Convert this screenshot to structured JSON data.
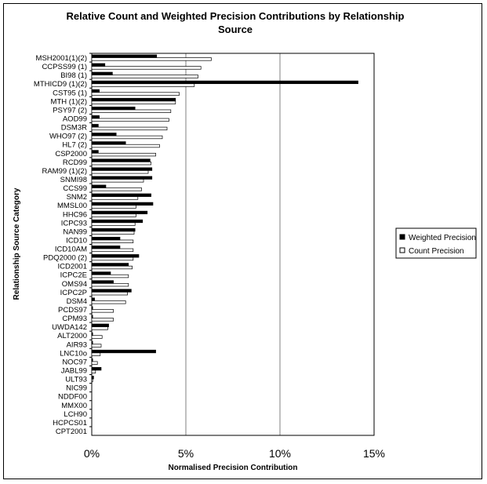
{
  "chart_data": {
    "type": "bar",
    "orientation": "horizontal",
    "title_line1": "Relative Count and Weighted Precision Contributions by Relationship",
    "title_line2": "Source",
    "xlabel": "Normalised Precision Contribution",
    "ylabel": "Relationship Source Category",
    "xlim": [
      0,
      15
    ],
    "xticks": [
      0,
      5,
      10,
      15
    ],
    "xtick_labels": [
      "0%",
      "5%",
      "10%",
      "15%"
    ],
    "grid": "vertical",
    "legend_position": "right",
    "categories": [
      "MSH2001(1)(2)",
      "CCPSS99 (1)",
      "BI98 (1)",
      "MTHICD9 (1)(2)",
      "CST95 (1)",
      "MTH (1)(2)",
      "PSY97 (2)",
      "AOD99",
      "DSM3R",
      "WHO97 (2)",
      "HL7 (2)",
      "CSP2000",
      "RCD99",
      "RAM99 (1)(2)",
      "SNMI98",
      "CCS99",
      "SNM2",
      "MMSL00",
      "HHC96",
      "ICPC93",
      "NAN99",
      "ICD10",
      "ICD10AM",
      "PDQ2000 (2)",
      "ICD2001",
      "ICPC2E",
      "OMS94",
      "ICPC2P",
      "DSM4",
      "PCDS97",
      "CPM93",
      "UWDA142",
      "ALT2000",
      "AIR93",
      "LNC10o",
      "NOC97",
      "JABL99",
      "ULT93",
      "NIC99",
      "NDDF00",
      "MMX00",
      "LCH90",
      "HCPCS01",
      "CPT2001"
    ],
    "series": [
      {
        "name": "Weighted Precision",
        "color": "#000000",
        "values": [
          3.45,
          0.7,
          1.1,
          14.15,
          0.4,
          4.45,
          2.3,
          0.4,
          0.35,
          1.3,
          1.8,
          0.35,
          3.1,
          3.2,
          3.2,
          0.75,
          3.15,
          3.25,
          2.95,
          2.7,
          2.3,
          1.5,
          1.5,
          2.5,
          1.95,
          1.0,
          1.15,
          2.1,
          0.15,
          0.05,
          0.05,
          0.9,
          0.05,
          0.05,
          3.4,
          0.05,
          0.5,
          0.1,
          0,
          0,
          0,
          0,
          0,
          0
        ]
      },
      {
        "name": "Count Precision",
        "color": "#ffffff",
        "values": [
          6.35,
          5.8,
          5.65,
          5.45,
          4.65,
          4.45,
          4.2,
          4.1,
          4.0,
          3.75,
          3.6,
          3.4,
          3.15,
          3.0,
          2.75,
          2.65,
          2.45,
          2.35,
          2.35,
          2.3,
          2.25,
          2.2,
          2.2,
          2.2,
          2.15,
          1.95,
          1.95,
          1.9,
          1.8,
          1.15,
          1.15,
          0.85,
          0.55,
          0.5,
          0.45,
          0.3,
          0.2,
          0.05,
          0,
          0,
          0,
          0,
          0,
          0
        ]
      }
    ]
  }
}
